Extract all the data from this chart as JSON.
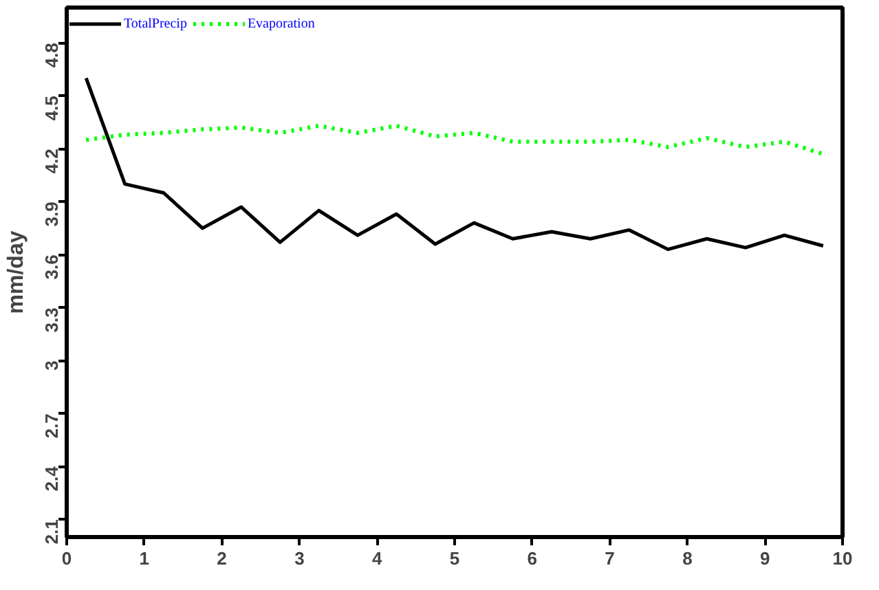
{
  "chart_data": {
    "type": "line",
    "ylabel": "mm/day",
    "x": [
      0.25,
      0.75,
      1.25,
      1.75,
      2.25,
      2.75,
      3.25,
      3.75,
      4.25,
      4.75,
      5.25,
      5.75,
      6.25,
      6.75,
      7.25,
      7.75,
      8.25,
      8.75,
      9.25,
      9.75
    ],
    "series": [
      {
        "name": "TotalPrecip",
        "color": "#000000",
        "line_style": "solid",
        "values": [
          4.6,
          4.0,
          3.95,
          3.75,
          3.87,
          3.67,
          3.85,
          3.71,
          3.83,
          3.66,
          3.78,
          3.69,
          3.73,
          3.69,
          3.74,
          3.63,
          3.69,
          3.64,
          3.71,
          3.65
        ]
      },
      {
        "name": "Evaporation",
        "color": "#00ff00",
        "line_style": "dotted",
        "values": [
          4.25,
          4.28,
          4.29,
          4.31,
          4.32,
          4.29,
          4.33,
          4.29,
          4.33,
          4.27,
          4.29,
          4.24,
          4.24,
          4.24,
          4.25,
          4.21,
          4.26,
          4.21,
          4.24,
          4.17
        ]
      }
    ],
    "xlim": [
      0,
      10
    ],
    "xticks": [
      0,
      1,
      2,
      3,
      4,
      5,
      6,
      7,
      8,
      9,
      10
    ],
    "ylim": [
      2.0,
      5.0
    ],
    "yticks": [
      2.1,
      2.4,
      2.7,
      3,
      3.3,
      3.6,
      3.9,
      4.2,
      4.5,
      4.8
    ],
    "grid": false,
    "legend": "top left",
    "marker": "none"
  }
}
